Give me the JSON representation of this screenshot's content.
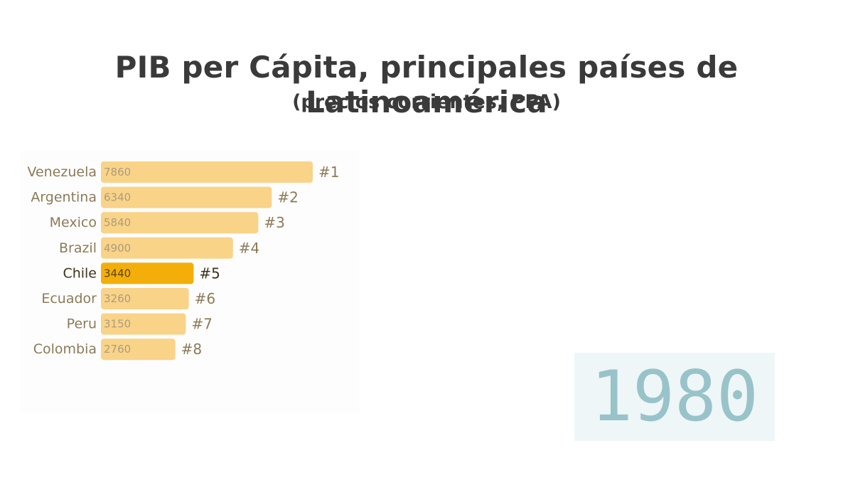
{
  "header": {
    "title": "PIB per Cápita, principales países de Latinoamérica",
    "subtitle": "(precios corrientes, PPA)"
  },
  "year": "1980",
  "colors": {
    "bar": "#f9d387",
    "bar_highlight": "#f3ae09",
    "label": "#8c7a58",
    "label_highlight": "#3d3417",
    "value_text": "#ad9c80",
    "value_text_highlight": "#5a4510",
    "year_text": "#98c3c9",
    "year_bg": "#eef6f8"
  },
  "chart_data": {
    "type": "bar",
    "orientation": "horizontal",
    "categories": [
      "Venezuela",
      "Argentina",
      "Mexico",
      "Brazil",
      "Chile",
      "Ecuador",
      "Peru",
      "Colombia"
    ],
    "values": [
      7860,
      6340,
      5840,
      4900,
      3440,
      3260,
      3150,
      2760
    ],
    "ranks": [
      "#1",
      "#2",
      "#3",
      "#4",
      "#5",
      "#6",
      "#7",
      "#8"
    ],
    "highlight": "Chile",
    "title": "PIB per Cápita, principales países de Latinoamérica",
    "subtitle": "(precios corrientes, PPA)",
    "xlabel": "",
    "ylabel": "",
    "grid": false
  }
}
